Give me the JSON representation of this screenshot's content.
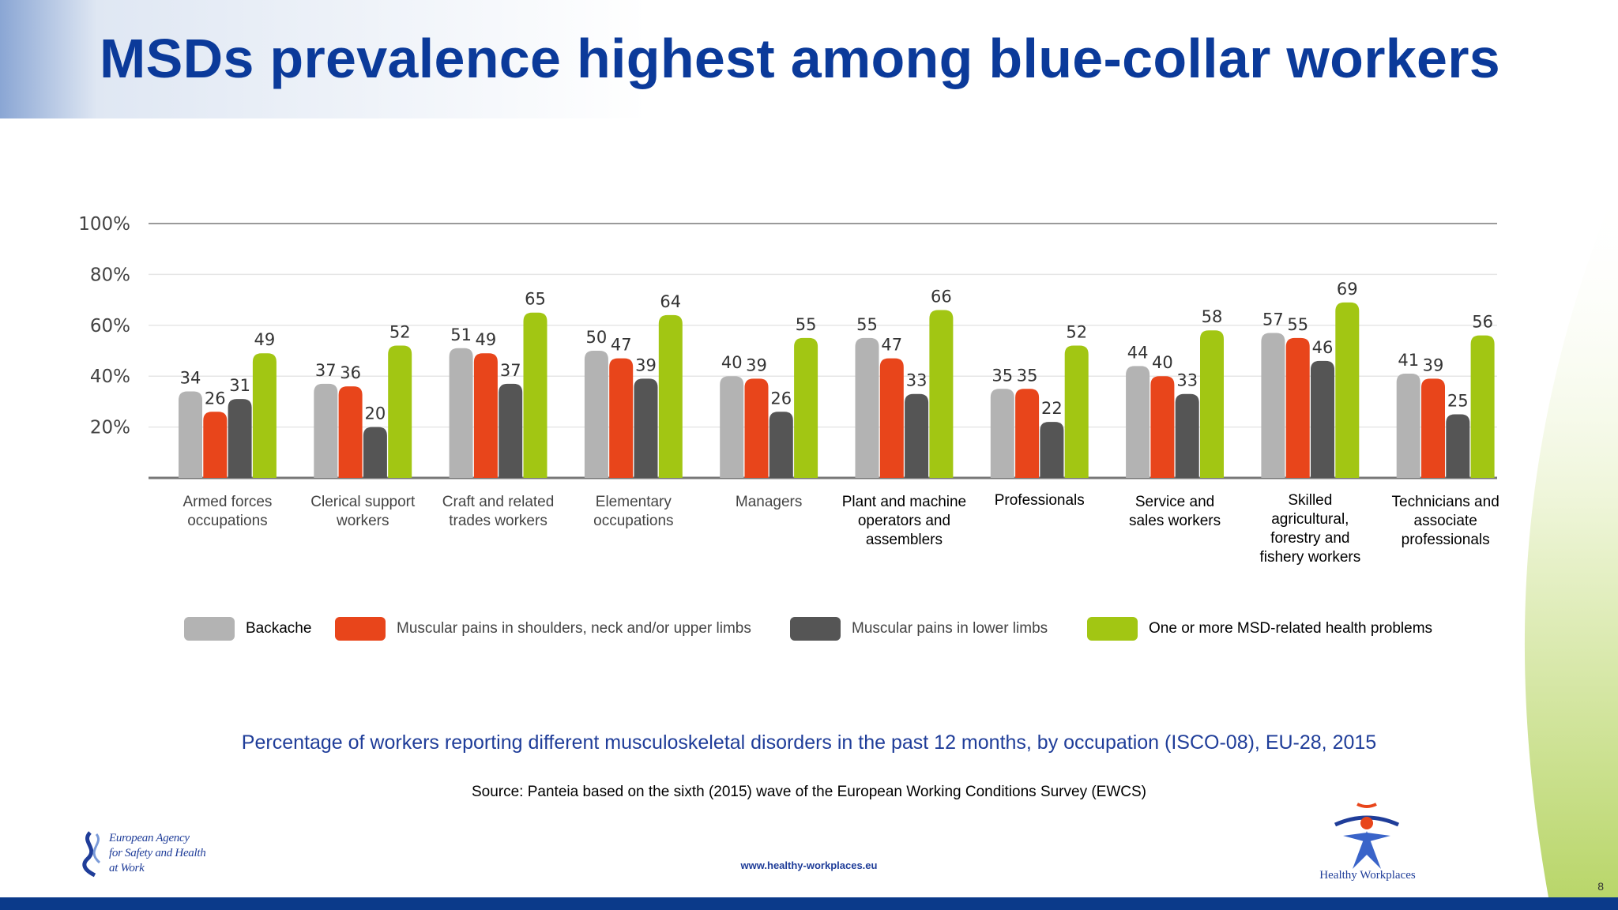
{
  "title": "MSDs prevalence highest among blue-collar workers",
  "chart_data": {
    "type": "bar",
    "title": "MSDs prevalence highest among blue-collar workers",
    "xlabel": "",
    "ylabel": "",
    "ylim": [
      0,
      100
    ],
    "yticks": [
      "20%",
      "40%",
      "60%",
      "80%",
      "100%"
    ],
    "categories": [
      [
        "Armed forces",
        "occupations"
      ],
      [
        "Clerical support",
        "workers"
      ],
      [
        "Craft and related",
        "trades workers"
      ],
      [
        "Elementary",
        "occupations"
      ],
      [
        "Managers"
      ],
      [
        "Plant and machine",
        "operators and",
        "assemblers"
      ],
      [
        "Professionals"
      ],
      [
        "Service and",
        "sales workers"
      ],
      [
        "Skilled",
        "agricultural,",
        "forestry and",
        "fishery workers"
      ],
      [
        "Technicians and",
        "associate",
        "professionals"
      ]
    ],
    "series": [
      {
        "name": "Backache",
        "color": "#b3b3b3",
        "values": [
          34,
          37,
          51,
          50,
          40,
          55,
          35,
          44,
          57,
          41
        ]
      },
      {
        "name": "Muscular pains in shoulders, neck and/or upper limbs",
        "color": "#e8451b",
        "values": [
          26,
          36,
          49,
          47,
          39,
          47,
          35,
          40,
          55,
          39
        ]
      },
      {
        "name": "Muscular pains in lower limbs",
        "color": "#555555",
        "values": [
          31,
          20,
          37,
          39,
          26,
          33,
          22,
          33,
          46,
          25
        ]
      },
      {
        "name": "One or more MSD-related health problems",
        "color": "#a2c613",
        "values": [
          49,
          52,
          65,
          64,
          55,
          66,
          52,
          58,
          69,
          56
        ]
      }
    ],
    "legend_position": "bottom"
  },
  "caption": "Percentage of workers reporting different musculoskeletal disorders in the past 12 months, by occupation (ISCO-08), EU-28, 2015",
  "source": "Source: Panteia based on the sixth (2015) wave of the European Working Conditions Survey (EWCS)",
  "footer": {
    "url": "www.healthy-workplaces.eu",
    "agency_logo_text": [
      "European Agency",
      "for Safety and Health",
      "at Work"
    ],
    "campaign_logo_text": "Healthy Workplaces",
    "page_number": "8"
  }
}
